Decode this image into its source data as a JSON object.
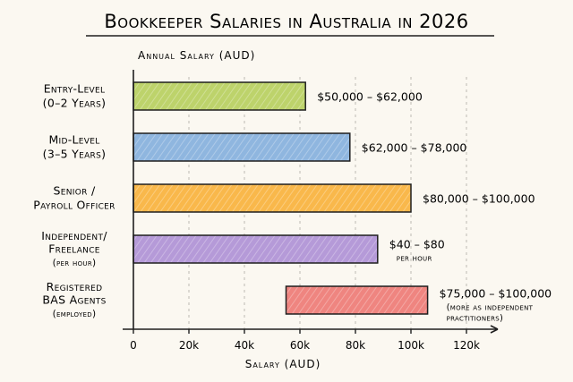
{
  "chart_data": {
    "type": "bar",
    "orientation": "horizontal",
    "title": "Bookkeeper Salaries in Australia in 2026",
    "top_axis_label": "Annual Salary (AUD)",
    "xlabel": "Salary (AUD)",
    "xlim": [
      0,
      120000
    ],
    "x_ticks": [
      {
        "value": 0,
        "label": "0"
      },
      {
        "value": 20000,
        "label": "20k"
      },
      {
        "value": 40000,
        "label": "40k"
      },
      {
        "value": 60000,
        "label": "60k"
      },
      {
        "value": 80000,
        "label": "80k"
      },
      {
        "value": 100000,
        "label": "100k"
      },
      {
        "value": 120000,
        "label": "120k"
      }
    ],
    "grid": "vertical dashed",
    "categories": [
      {
        "lines": [
          "Entry-Level",
          "(0–2 Years)"
        ],
        "small_line": -1,
        "start": 0,
        "end": 62000,
        "color": "#bdd36b",
        "label": "$50,000 – $62,000",
        "note": []
      },
      {
        "lines": [
          "Mid-Level",
          "(3–5 Years)"
        ],
        "small_line": -1,
        "start": 0,
        "end": 78000,
        "color": "#8fb6df",
        "label": "$62,000 – $78,000",
        "note": []
      },
      {
        "lines": [
          "Senior /",
          "Payroll Officer"
        ],
        "small_line": -1,
        "start": 0,
        "end": 100000,
        "color": "#f9b84b",
        "label": "$80,000 – $100,000",
        "note": []
      },
      {
        "lines": [
          "Independent/",
          "Freelance",
          "(per hour)"
        ],
        "small_line": 2,
        "start": 0,
        "end": 88000,
        "color": "#b59ad8",
        "label": "$40 – $80",
        "note": [
          "per hour"
        ]
      },
      {
        "lines": [
          "Registered",
          "BAS Agents",
          "(employed)"
        ],
        "small_line": 2,
        "start": 55000,
        "end": 106000,
        "color": "#ef8580",
        "label": "$75,000 – $100,000",
        "note": [
          "(more as independent",
          "practitioners)"
        ]
      }
    ]
  }
}
